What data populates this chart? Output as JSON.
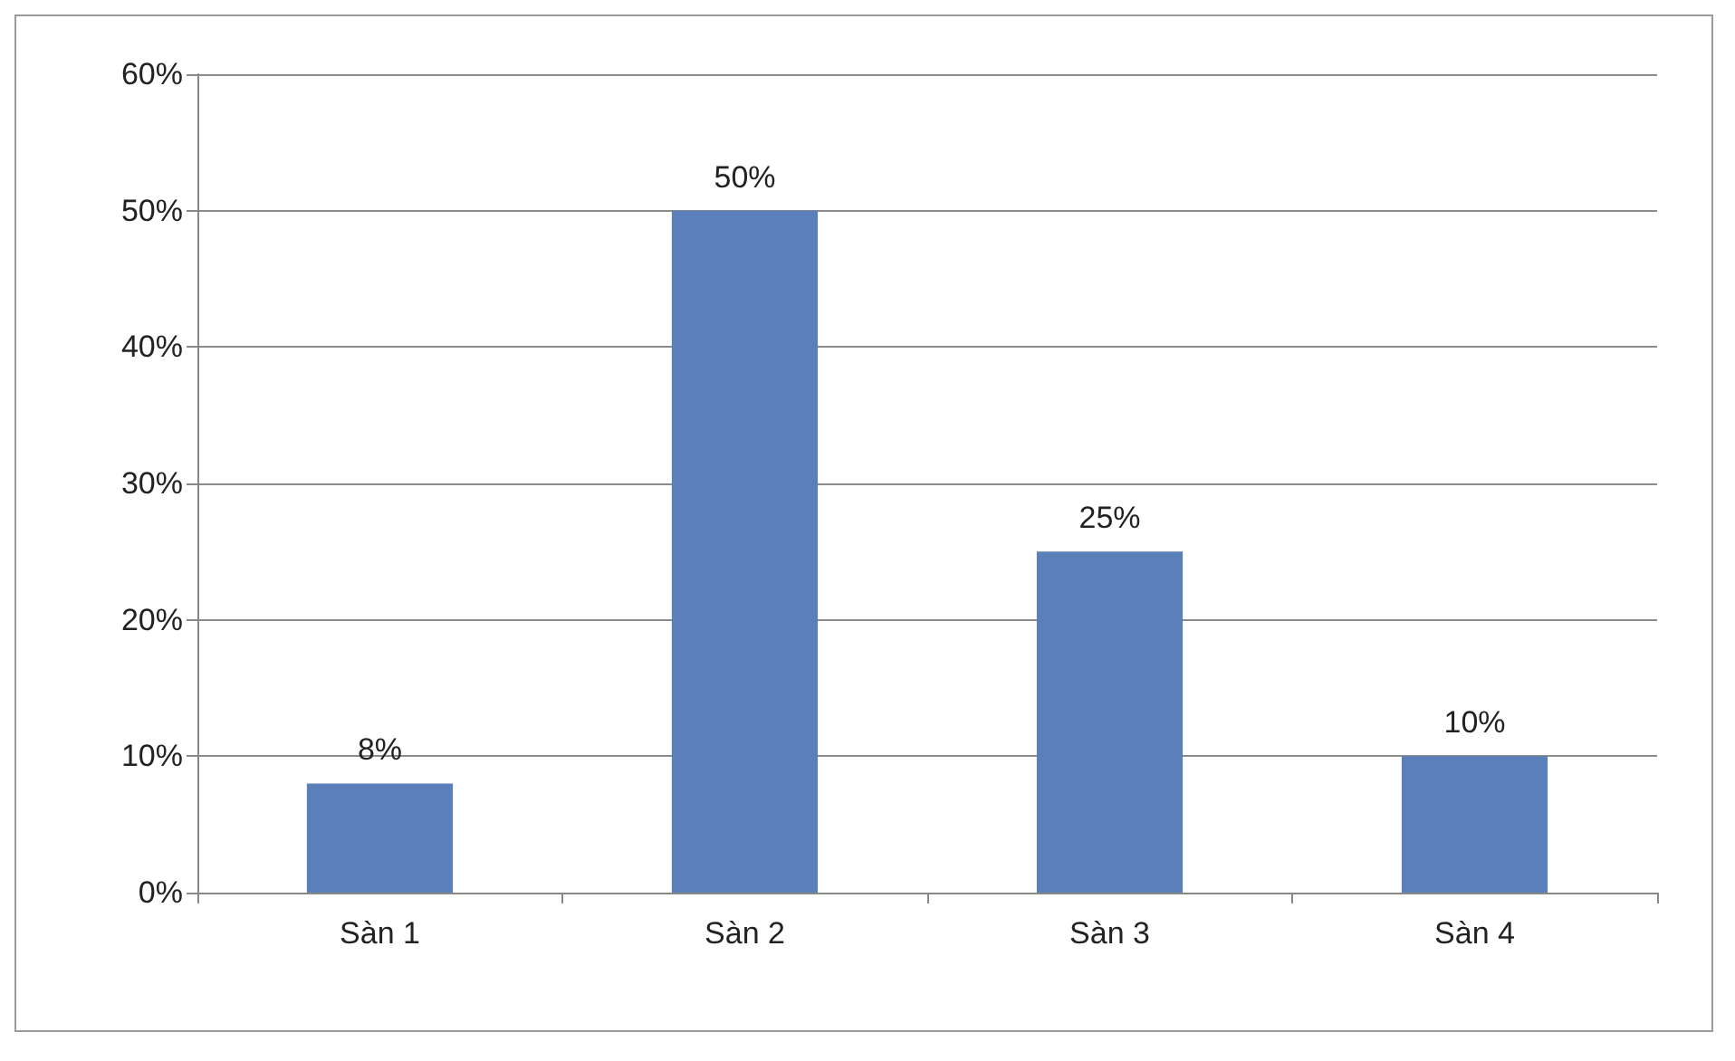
{
  "chart_data": {
    "type": "bar",
    "categories": [
      "Sàn 1",
      "Sàn 2",
      "Sàn 3",
      "Sàn 4"
    ],
    "values": [
      8,
      50,
      25,
      10
    ],
    "color": "#5b7fb8",
    "value_labels": [
      "8%",
      "50%",
      "25%",
      "10%"
    ],
    "ylim": [
      0,
      60
    ],
    "yticks": [
      {
        "value": 0,
        "label": "0%"
      },
      {
        "value": 10,
        "label": "10%"
      },
      {
        "value": 20,
        "label": "20%"
      },
      {
        "value": 30,
        "label": "30%"
      },
      {
        "value": 40,
        "label": "40%"
      },
      {
        "value": 50,
        "label": "50%"
      },
      {
        "value": 60,
        "label": "60%"
      }
    ],
    "grid": "y"
  }
}
